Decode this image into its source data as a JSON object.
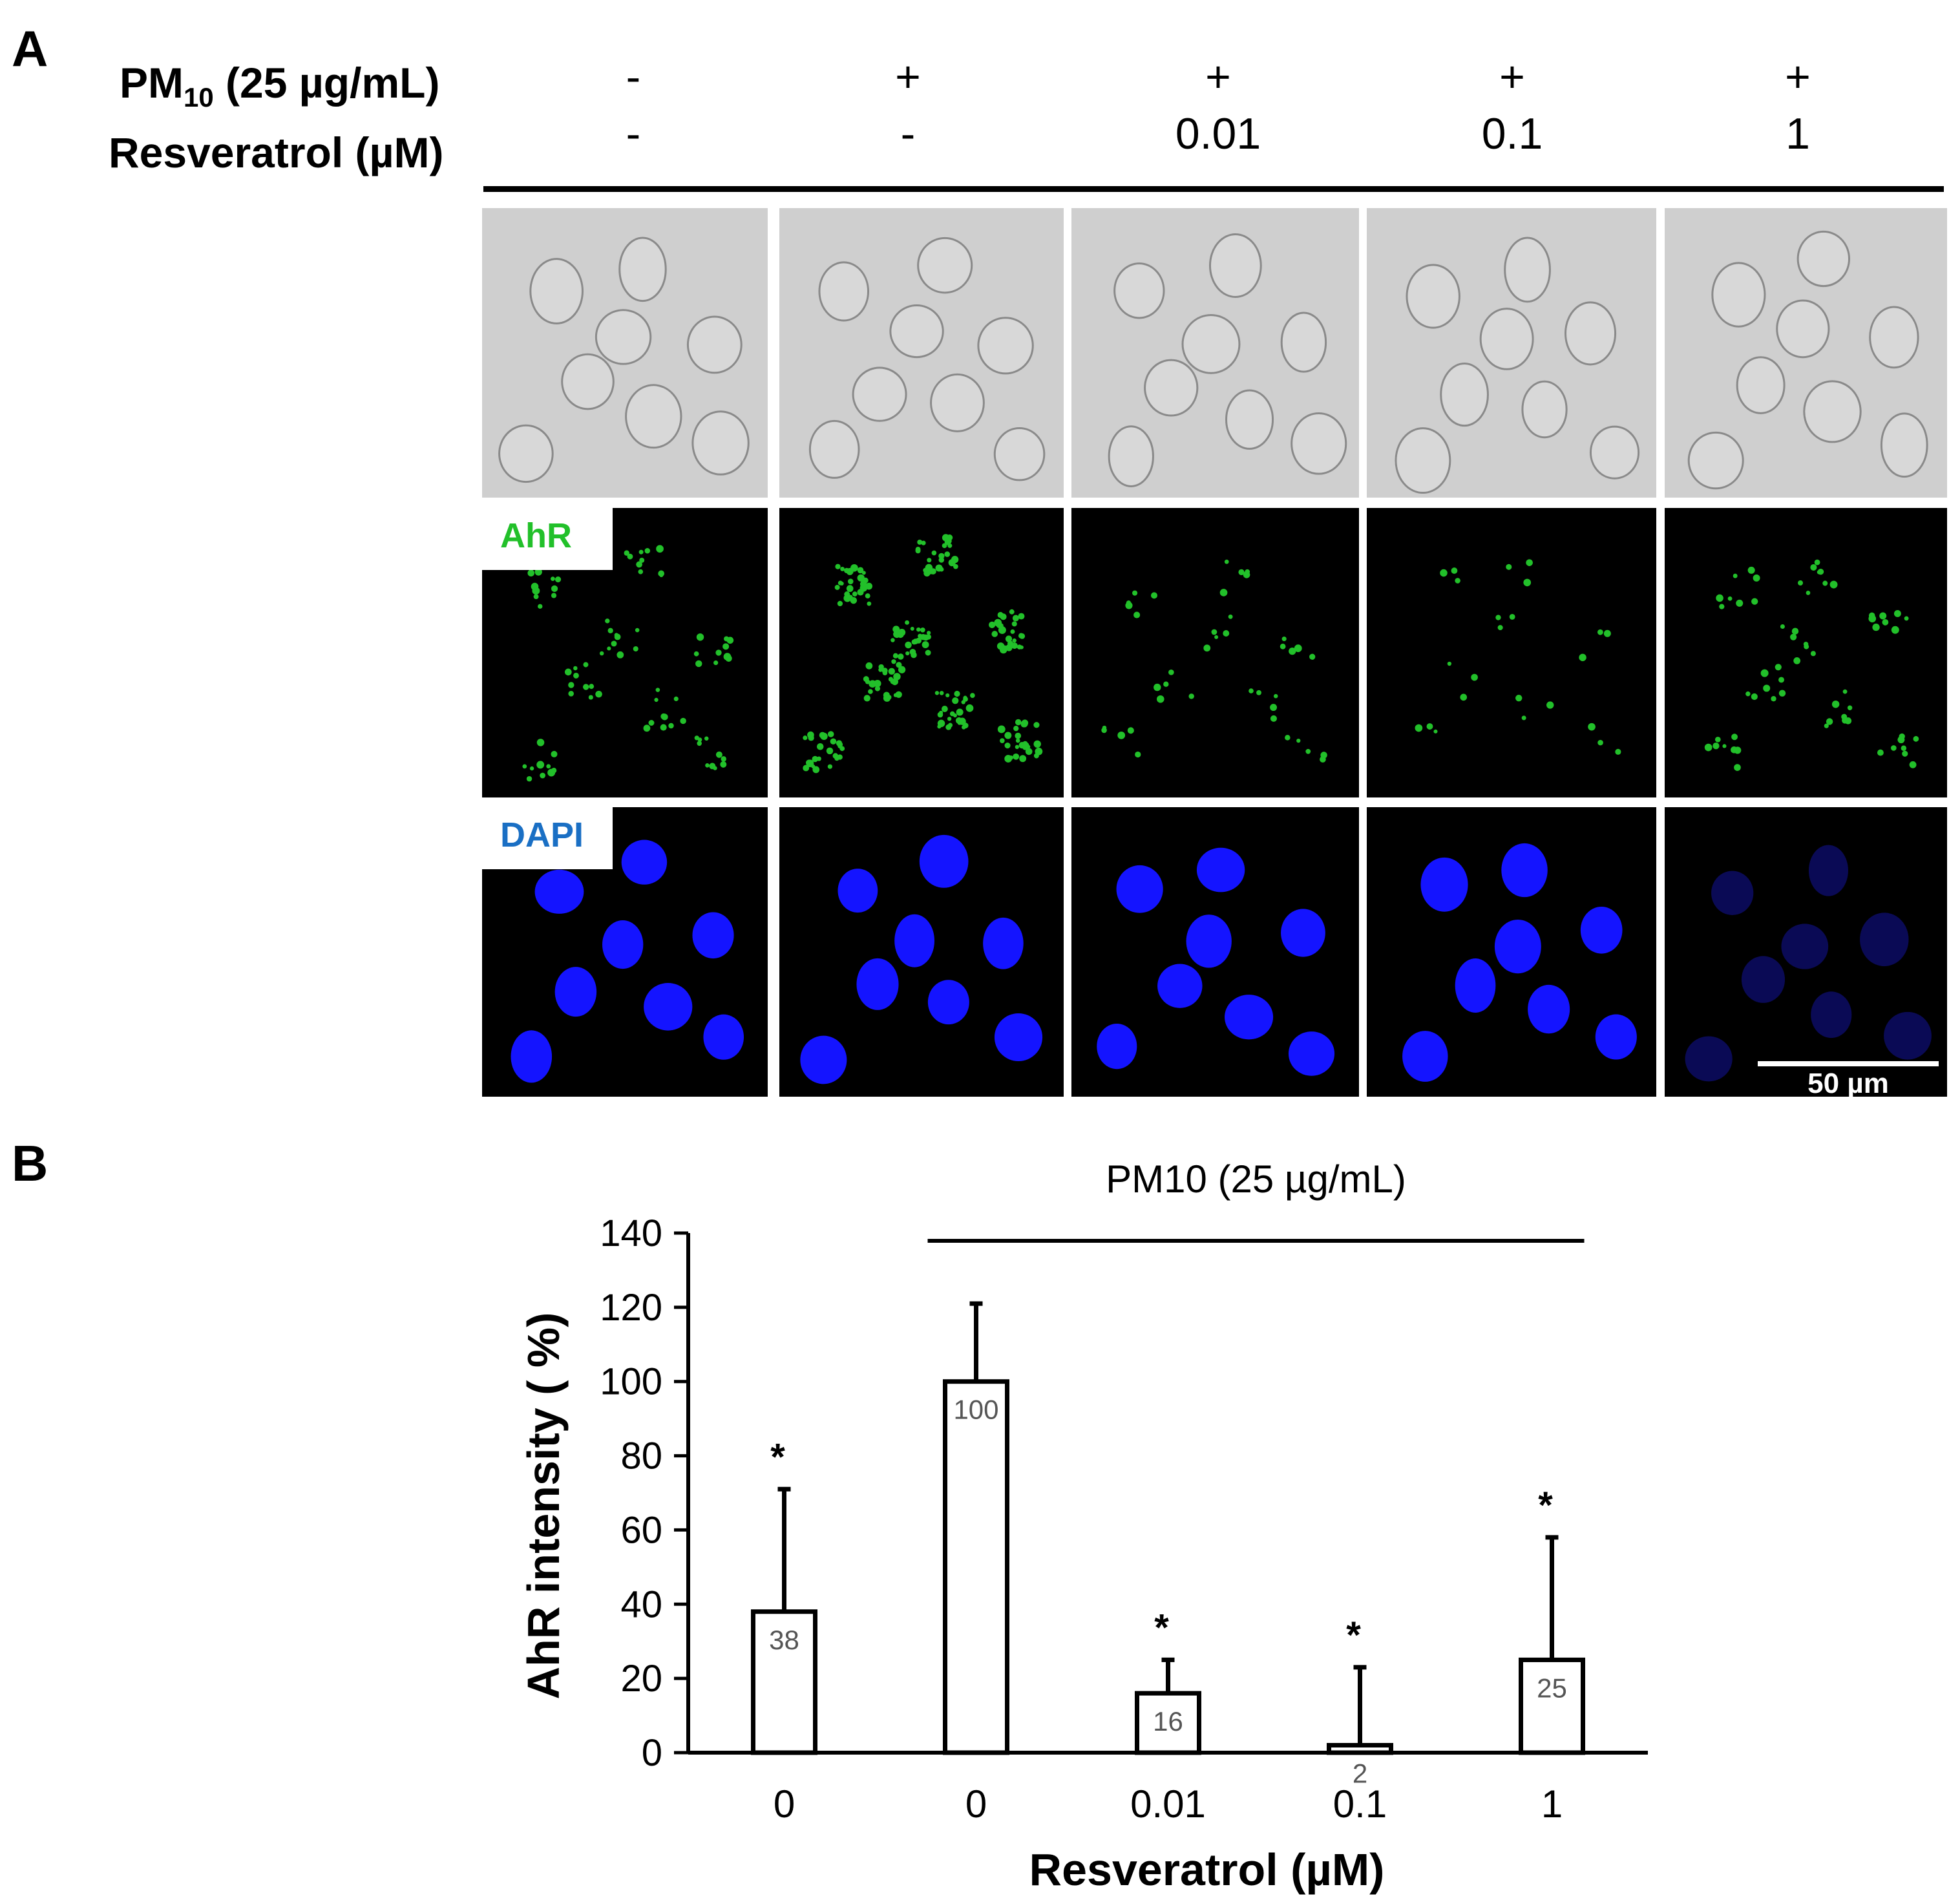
{
  "panel_a": {
    "letter": "A",
    "pm10_label": "PM",
    "pm10_sub": "10",
    "pm10_rest": " (25 µg/mL)",
    "resveratrol_label": "Resveratrol (µM)",
    "pm10_values": [
      "-",
      "+",
      "+",
      "+",
      "+"
    ],
    "resveratrol_values": [
      "-",
      "-",
      "0.01",
      "0.1",
      "1"
    ],
    "row_labels": {
      "ahr": "AhR",
      "dapi": "DAPI"
    },
    "colors": {
      "ahr": "#22c02a",
      "dapi": "#1a6fc4",
      "nuclei": "#1414ff"
    },
    "scale_bar_label": "50 µm"
  },
  "panel_b": {
    "letter": "B"
  },
  "chart_data": {
    "type": "bar",
    "categories": [
      "0",
      "0",
      "0.01",
      "0.1",
      "1"
    ],
    "values": [
      38,
      100,
      16,
      2,
      25
    ],
    "error_upper": [
      71,
      121,
      25,
      23,
      58
    ],
    "significance": [
      "*",
      "",
      "*",
      "*",
      "*"
    ],
    "data_labels": [
      "38",
      "100",
      "16",
      "2",
      "25"
    ],
    "xlabel": "Resveratrol (µM)",
    "ylabel": "AhR intensity ( %)",
    "ylim": [
      0,
      140
    ],
    "yticks": [
      0,
      20,
      40,
      60,
      80,
      100,
      120,
      140
    ],
    "group_label": "PM10 (25 µg/mL)",
    "bar_fill": "#ffffff",
    "grid": false
  }
}
